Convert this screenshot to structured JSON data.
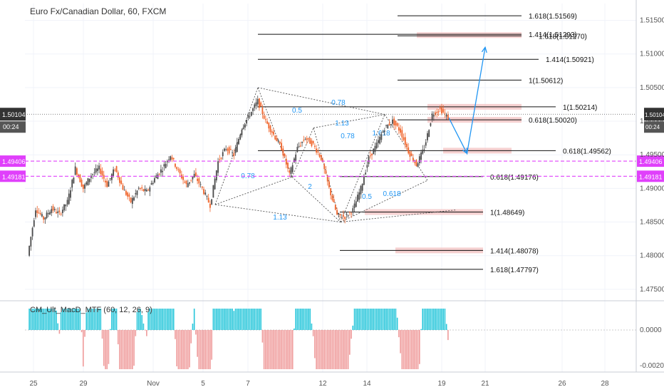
{
  "header": {
    "title": "Euro Fx/Canadian Dollar, 60, FXCM",
    "indicator": "CM_Ult_MacD_MTF (60, 12, 26, 9)"
  },
  "price_axis": {
    "ticks": [
      "1.51500",
      "1.51000",
      "1.50500",
      "1.50000",
      "1.49500",
      "1.49000",
      "1.48500",
      "1.48000",
      "1.47500"
    ],
    "current_price": "1.50104",
    "countdown": "00:24",
    "h_lines": [
      {
        "label": "1.49406",
        "color": "#e040fb",
        "value": 1.49406
      },
      {
        "label": "1.49181",
        "color": "#e040fb",
        "value": 1.49181
      }
    ]
  },
  "macd_axis": {
    "ticks": [
      "0.0000",
      "-0.0020"
    ]
  },
  "time_axis": {
    "labels": [
      "25",
      "29",
      "Nov",
      "5",
      "7",
      "12",
      "14",
      "19",
      "21",
      "26",
      "28"
    ]
  },
  "fib_labels": [
    {
      "text": "1.618(1.51569)",
      "value": 1.51569
    },
    {
      "text": "1.414(1.51293)",
      "value": 1.51293
    },
    {
      "text": "1.618(1.51270)",
      "value": 1.5127
    },
    {
      "text": "1.414(1.50921)",
      "value": 1.50921
    },
    {
      "text": "1(1.50612)",
      "value": 1.50612
    },
    {
      "text": "1(1.50214)",
      "value": 1.50214
    },
    {
      "text": "0.618(1.50020)",
      "value": 1.5002
    },
    {
      "text": "0.618(1.49562)",
      "value": 1.49562
    },
    {
      "text": "0.618(1.49176)",
      "value": 1.49176
    },
    {
      "text": "1(1.48649)",
      "value": 1.48649
    },
    {
      "text": "1.414(1.48078)",
      "value": 1.48078
    },
    {
      "text": "1.618(1.47797)",
      "value": 1.47797
    }
  ],
  "pattern_labels": [
    "0.78",
    "0.5",
    "1.13",
    "0.78",
    "1.618",
    "0.78",
    "2",
    "0.5",
    "0.618",
    "1.13",
    "1"
  ],
  "colors": {
    "up": "#4a4a4a",
    "down": "#f0642a",
    "accent": "#2196f3",
    "zone": "#f4c6c6",
    "pink": "#e040fb",
    "macd_up": "#26c6da",
    "macd_down": "#ef9a9a"
  },
  "chart_data": {
    "type": "candlestick",
    "symbol": "EUR/CAD",
    "timeframe": "60",
    "ylim": [
      1.4735,
      1.5175
    ],
    "current_price": 1.50104,
    "horizontal_levels": [
      1.49406,
      1.49181
    ],
    "fib_levels": [
      1.51569,
      1.51293,
      1.5127,
      1.50921,
      1.50612,
      1.50214,
      1.5002,
      1.49562,
      1.49176,
      1.48649,
      1.48078,
      1.47797
    ],
    "price_path": [
      [
        0,
        1.48
      ],
      [
        1,
        1.487
      ],
      [
        2,
        1.4855
      ],
      [
        3,
        1.487
      ],
      [
        4,
        1.4862
      ],
      [
        5,
        1.488
      ],
      [
        6,
        1.493
      ],
      [
        7,
        1.49
      ],
      [
        8,
        1.492
      ],
      [
        9,
        1.493
      ],
      [
        10,
        1.4905
      ],
      [
        11,
        1.493
      ],
      [
        12,
        1.49
      ],
      [
        13,
        1.488
      ],
      [
        14,
        1.49
      ],
      [
        15,
        1.4895
      ],
      [
        16,
        1.4915
      ],
      [
        17,
        1.493
      ],
      [
        18,
        1.495
      ],
      [
        19,
        1.4925
      ],
      [
        20,
        1.4905
      ],
      [
        21,
        1.492
      ],
      [
        22,
        1.49
      ],
      [
        23,
        1.4875
      ],
      [
        24,
        1.494
      ],
      [
        25,
        1.496
      ],
      [
        26,
        1.495
      ],
      [
        27,
        1.499
      ],
      [
        28,
        1.501
      ],
      [
        29,
        1.503
      ],
      [
        30,
        1.5
      ],
      [
        31,
        1.498
      ],
      [
        32,
        1.496
      ],
      [
        33,
        1.492
      ],
      [
        34,
        1.496
      ],
      [
        35,
        1.4975
      ],
      [
        36,
        1.4965
      ],
      [
        37,
        1.4945
      ],
      [
        38,
        1.49
      ],
      [
        39,
        1.486
      ],
      [
        40,
        1.4858
      ],
      [
        41,
        1.4868
      ],
      [
        42,
        1.49
      ],
      [
        43,
        1.4945
      ],
      [
        44,
        1.4965
      ],
      [
        45,
        1.499
      ],
      [
        46,
        1.5
      ],
      [
        47,
        1.4985
      ],
      [
        48,
        1.4955
      ],
      [
        49,
        1.4935
      ],
      [
        50,
        1.496
      ],
      [
        51,
        1.501
      ],
      [
        52,
        1.5018
      ],
      [
        53,
        1.5005
      ]
    ],
    "projection": [
      [
        53,
        1.5005
      ],
      [
        56,
        1.4952
      ],
      [
        59,
        1.511
      ]
    ]
  }
}
